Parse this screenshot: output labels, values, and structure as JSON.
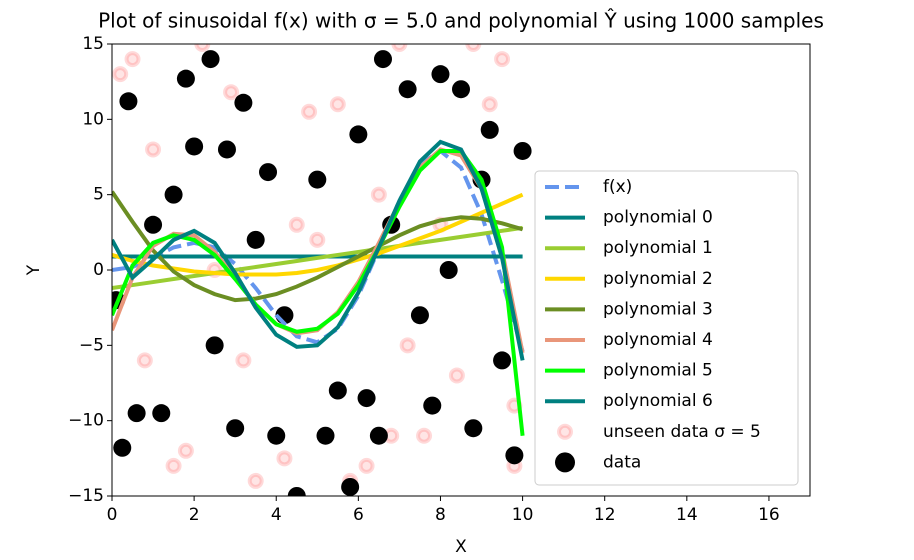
{
  "chart_data": {
    "type": "line",
    "title": "Plot of sinusoidal f(x) with σ = 5.0 and polynomial Ŷ using 1000 samples",
    "x_label": "X",
    "y_label": "Y",
    "xlim": [
      0,
      17
    ],
    "ylim": [
      -15,
      15
    ],
    "xticks": [
      0,
      2,
      4,
      6,
      8,
      10,
      12,
      14,
      16
    ],
    "yticks": [
      {
        "value": -15,
        "label": "−15"
      },
      {
        "value": -10,
        "label": "−10"
      },
      {
        "value": -5,
        "label": "−5"
      },
      0,
      5,
      10,
      15
    ],
    "legend": "lower right",
    "x": [
      0,
      0.5,
      1,
      1.5,
      2,
      2.5,
      3,
      3.5,
      4,
      4.5,
      5,
      5.5,
      6,
      6.5,
      7,
      7.5,
      8,
      8.5,
      9,
      9.5,
      10
    ],
    "series": [
      {
        "name": "f(x)",
        "type": "line",
        "linestyle": "dashed",
        "color": "#6495ed",
        "values": [
          0,
          0.2,
          0.8,
          1.5,
          1.8,
          1.5,
          0.4,
          -1.2,
          -3.0,
          -4.4,
          -4.8,
          -3.9,
          -1.7,
          1.4,
          4.6,
          7.0,
          7.9,
          6.8,
          3.7,
          -0.7,
          -5.4
        ]
      },
      {
        "name": "polynomial 0",
        "type": "line",
        "color": "#008080",
        "values": [
          0.9,
          0.9,
          0.9,
          0.9,
          0.9,
          0.9,
          0.9,
          0.9,
          0.9,
          0.9,
          0.9,
          0.9,
          0.9,
          0.9,
          0.9,
          0.9,
          0.9,
          0.9,
          0.9,
          0.9,
          0.9
        ]
      },
      {
        "name": "polynomial 1",
        "type": "line",
        "color": "#9acd32",
        "values": [
          -1.2,
          -1.0,
          -0.8,
          -0.6,
          -0.4,
          -0.2,
          0,
          0.2,
          0.4,
          0.6,
          0.8,
          1.0,
          1.2,
          1.4,
          1.6,
          1.8,
          2.0,
          2.2,
          2.4,
          2.6,
          2.8
        ]
      },
      {
        "name": "polynomial 2",
        "type": "line",
        "color": "#ffd700",
        "values": [
          1.0,
          0.6,
          0.3,
          0.1,
          -0.1,
          -0.2,
          -0.3,
          -0.3,
          -0.3,
          -0.2,
          0,
          0.3,
          0.7,
          1.1,
          1.6,
          2.1,
          2.6,
          3.2,
          3.8,
          4.4,
          5.0
        ]
      },
      {
        "name": "polynomial 3",
        "type": "line",
        "color": "#6b8e23",
        "values": [
          5.2,
          3.2,
          1.3,
          -0.1,
          -1.0,
          -1.6,
          -2.0,
          -1.9,
          -1.6,
          -1.1,
          -0.5,
          0.2,
          0.9,
          1.6,
          2.3,
          2.9,
          3.3,
          3.5,
          3.4,
          3.1,
          2.7
        ]
      },
      {
        "name": "polynomial 4",
        "type": "line",
        "color": "#e9967a",
        "values": [
          -4.0,
          -0.5,
          1.6,
          2.4,
          2.3,
          1.2,
          -0.5,
          -2.3,
          -3.6,
          -4.2,
          -4.0,
          -2.8,
          -0.8,
          1.8,
          4.5,
          6.8,
          8.0,
          7.6,
          5.4,
          1.3,
          -5.5
        ]
      },
      {
        "name": "polynomial 5",
        "type": "line",
        "color": "#00ff00",
        "values": [
          -3.0,
          0.3,
          1.8,
          2.3,
          2.0,
          1.0,
          -0.6,
          -2.3,
          -3.6,
          -4.1,
          -3.9,
          -2.9,
          -1.0,
          1.5,
          4.2,
          6.6,
          7.9,
          7.9,
          6.0,
          1.5,
          -11.0
        ]
      },
      {
        "name": "polynomial 6",
        "type": "line",
        "color": "#008080",
        "values": [
          2.0,
          -0.5,
          0.7,
          2.0,
          2.6,
          1.8,
          -0.2,
          -2.5,
          -4.3,
          -5.1,
          -5.0,
          -3.8,
          -1.5,
          1.5,
          4.6,
          7.2,
          8.5,
          8.0,
          5.4,
          0.8,
          -6.0
        ]
      },
      {
        "name": "unseen data σ = 5",
        "type": "scatter",
        "color": "#ff0000",
        "x": [
          0.5,
          1.5,
          2.2,
          3.5,
          4.8,
          5.5,
          6.2,
          7,
          7.6,
          8.4,
          9.2,
          9.8,
          0.2,
          1,
          2.9,
          4.2,
          5.8,
          6.8,
          8.8,
          9.5,
          1.8,
          3.2,
          4.5,
          7.2,
          0.8,
          2.5,
          5,
          6.5,
          8,
          9.8
        ],
        "values": [
          14,
          -13,
          15,
          -14,
          10.5,
          11,
          -13,
          15,
          -11,
          -7,
          11,
          -13,
          13,
          8,
          11.8,
          -12.5,
          -14,
          -11,
          15,
          14,
          -12,
          -6,
          3,
          -5,
          -6,
          0,
          2,
          5,
          3,
          -9
        ]
      },
      {
        "name": "data",
        "type": "scatter",
        "color": "#000000",
        "x": [
          0.4,
          0.25,
          1.8,
          2.4,
          3.2,
          4.5,
          5.8,
          6.6,
          9.2,
          10,
          7.8,
          8.8,
          9.8,
          0.6,
          1.2,
          2.0,
          3.0,
          3.8,
          5.0,
          5.5,
          6.2,
          6.5,
          7.2,
          8.0,
          8.5,
          9.5,
          1.5,
          2.5,
          4.2,
          6.8,
          0.1,
          3.5,
          7.5,
          9.0,
          8.2,
          1.0,
          5.2,
          4.0,
          2.8,
          6.0
        ],
        "values": [
          11.2,
          -11.8,
          12.7,
          14,
          11.1,
          -15,
          -14.4,
          14,
          9.3,
          7.9,
          -9,
          -10.5,
          -12.3,
          -9.5,
          -9.5,
          8.2,
          -10.5,
          6.5,
          6,
          -8,
          -8.5,
          -11,
          12,
          13,
          12,
          -6,
          5,
          -5,
          -3,
          3,
          -2,
          2,
          -3,
          6,
          0,
          3,
          -11,
          -11,
          8,
          9
        ]
      }
    ]
  }
}
